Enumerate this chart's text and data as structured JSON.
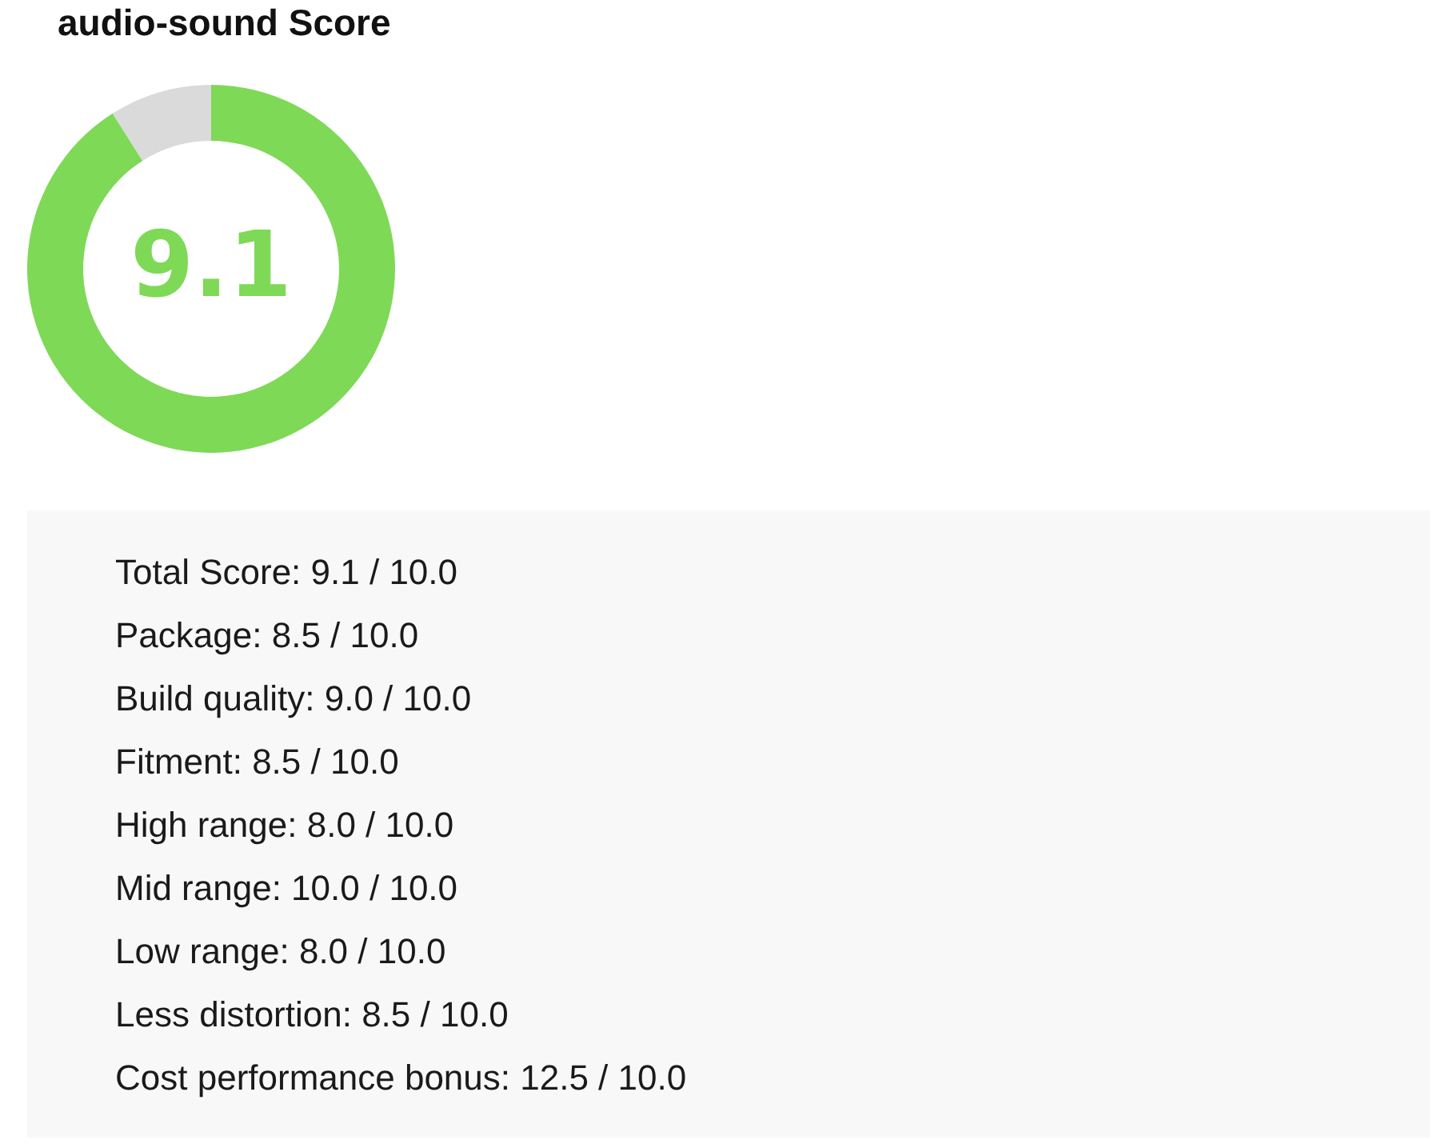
{
  "chart_data": [
    {
      "type": "donut",
      "title": "audio-sound Score",
      "categories": [
        null,
        null
      ],
      "values": [
        91,
        9
      ],
      "colors": [
        "#7ed957",
        "#dadada"
      ],
      "annotations": [
        "9.1"
      ]
    },
    {
      "type": "other",
      "annotations": [
        "Total Score: 9.1 / 10.0",
        "Package: 8.5 / 10.0",
        "Build quality: 9.0 / 10.0",
        "Fitment: 8.5 / 10.0",
        "High range: 8.0 / 10.0",
        "Mid range: 10.0 / 10.0",
        "Low range: 8.0 / 10.0",
        "Less distortion: 8.5 / 10.0",
        "Cost performance bonus: 12.5 / 10.0"
      ]
    }
  ]
}
